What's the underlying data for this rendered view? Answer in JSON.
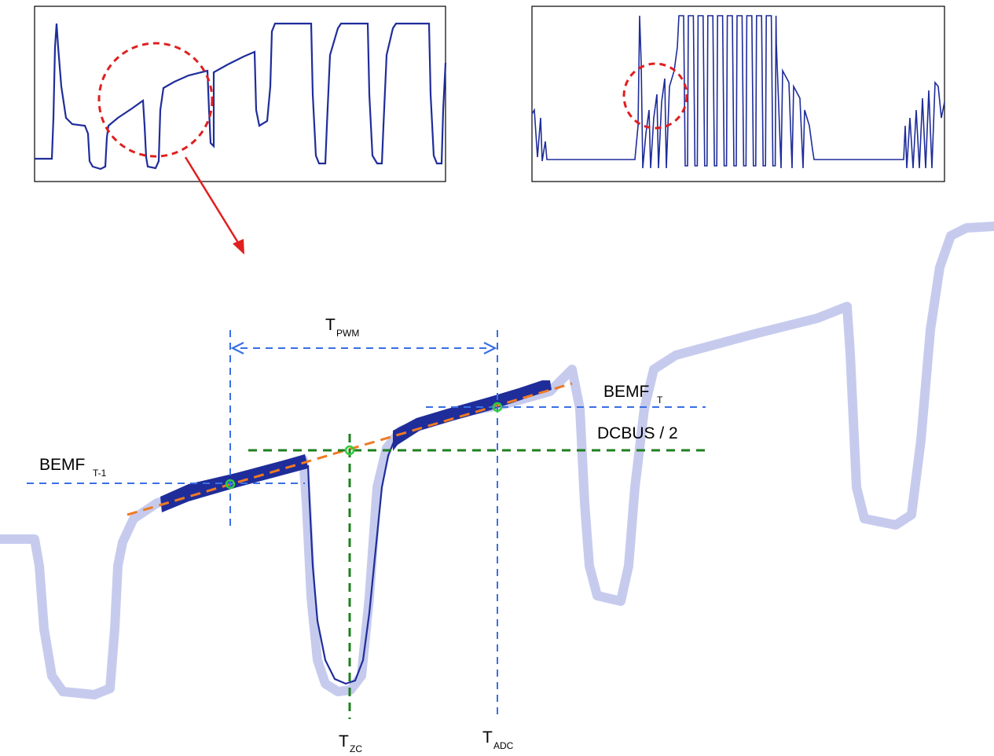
{
  "colors": {
    "trace_dark": "#1f2d9a",
    "trace_faded": "#c6cbee",
    "marker_blue": "#3a6fe6",
    "marker_green": "#1f7f1f",
    "fit_line": "#f07a22",
    "zoom_highlight": "#e01f1f",
    "sample_point": "#2ecf3a",
    "frame": "#000000"
  },
  "labels": {
    "t_pwm": {
      "main": "T",
      "sub": "PWM"
    },
    "bemf_t": {
      "main": "BEMF",
      "sub": "T"
    },
    "bemf_t1": {
      "main": "BEMF",
      "sub": "T-1"
    },
    "dcbus": {
      "main": "DCBUS / 2"
    },
    "t_zc": {
      "main": "T",
      "sub": "ZC"
    },
    "t_adc": {
      "main": "T",
      "sub": "ADC"
    }
  }
}
